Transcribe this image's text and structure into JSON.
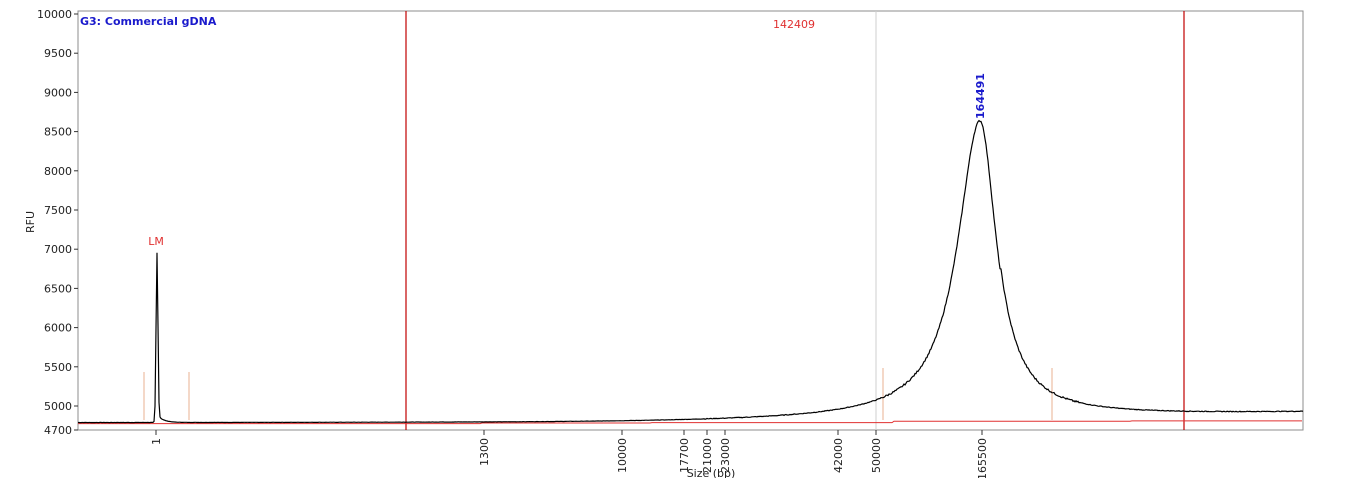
{
  "chart_data": {
    "type": "line",
    "title": "G3: Commercial gDNA",
    "xlabel": "Size (bp)",
    "ylabel": "RFU",
    "ylim": [
      4700,
      10000
    ],
    "y_ticks": [
      4700,
      5000,
      5500,
      6000,
      6500,
      7000,
      7500,
      8000,
      8500,
      9000,
      9500,
      10000
    ],
    "x_axis_scale": "non-linear (sizing ladder)",
    "x_tick_labels": [
      "1",
      "1300",
      "10000",
      "17700",
      "21000",
      "23000",
      "42000",
      "50000",
      "165500"
    ],
    "grid": false,
    "colors": {
      "trace": "#000000",
      "baseline": "#e03030",
      "region_markers": "#c00000",
      "title": "#1a1acc",
      "peak_label": "#1a1acc",
      "lm_label": "#e03030",
      "smear_label": "#e03030"
    },
    "peaks": [
      {
        "label": "LM",
        "size_bp": 1,
        "rfu": 6950
      },
      {
        "label": "164491",
        "size_bp": 164491,
        "rfu": 8660
      }
    ],
    "smear_label": "142409"
  }
}
